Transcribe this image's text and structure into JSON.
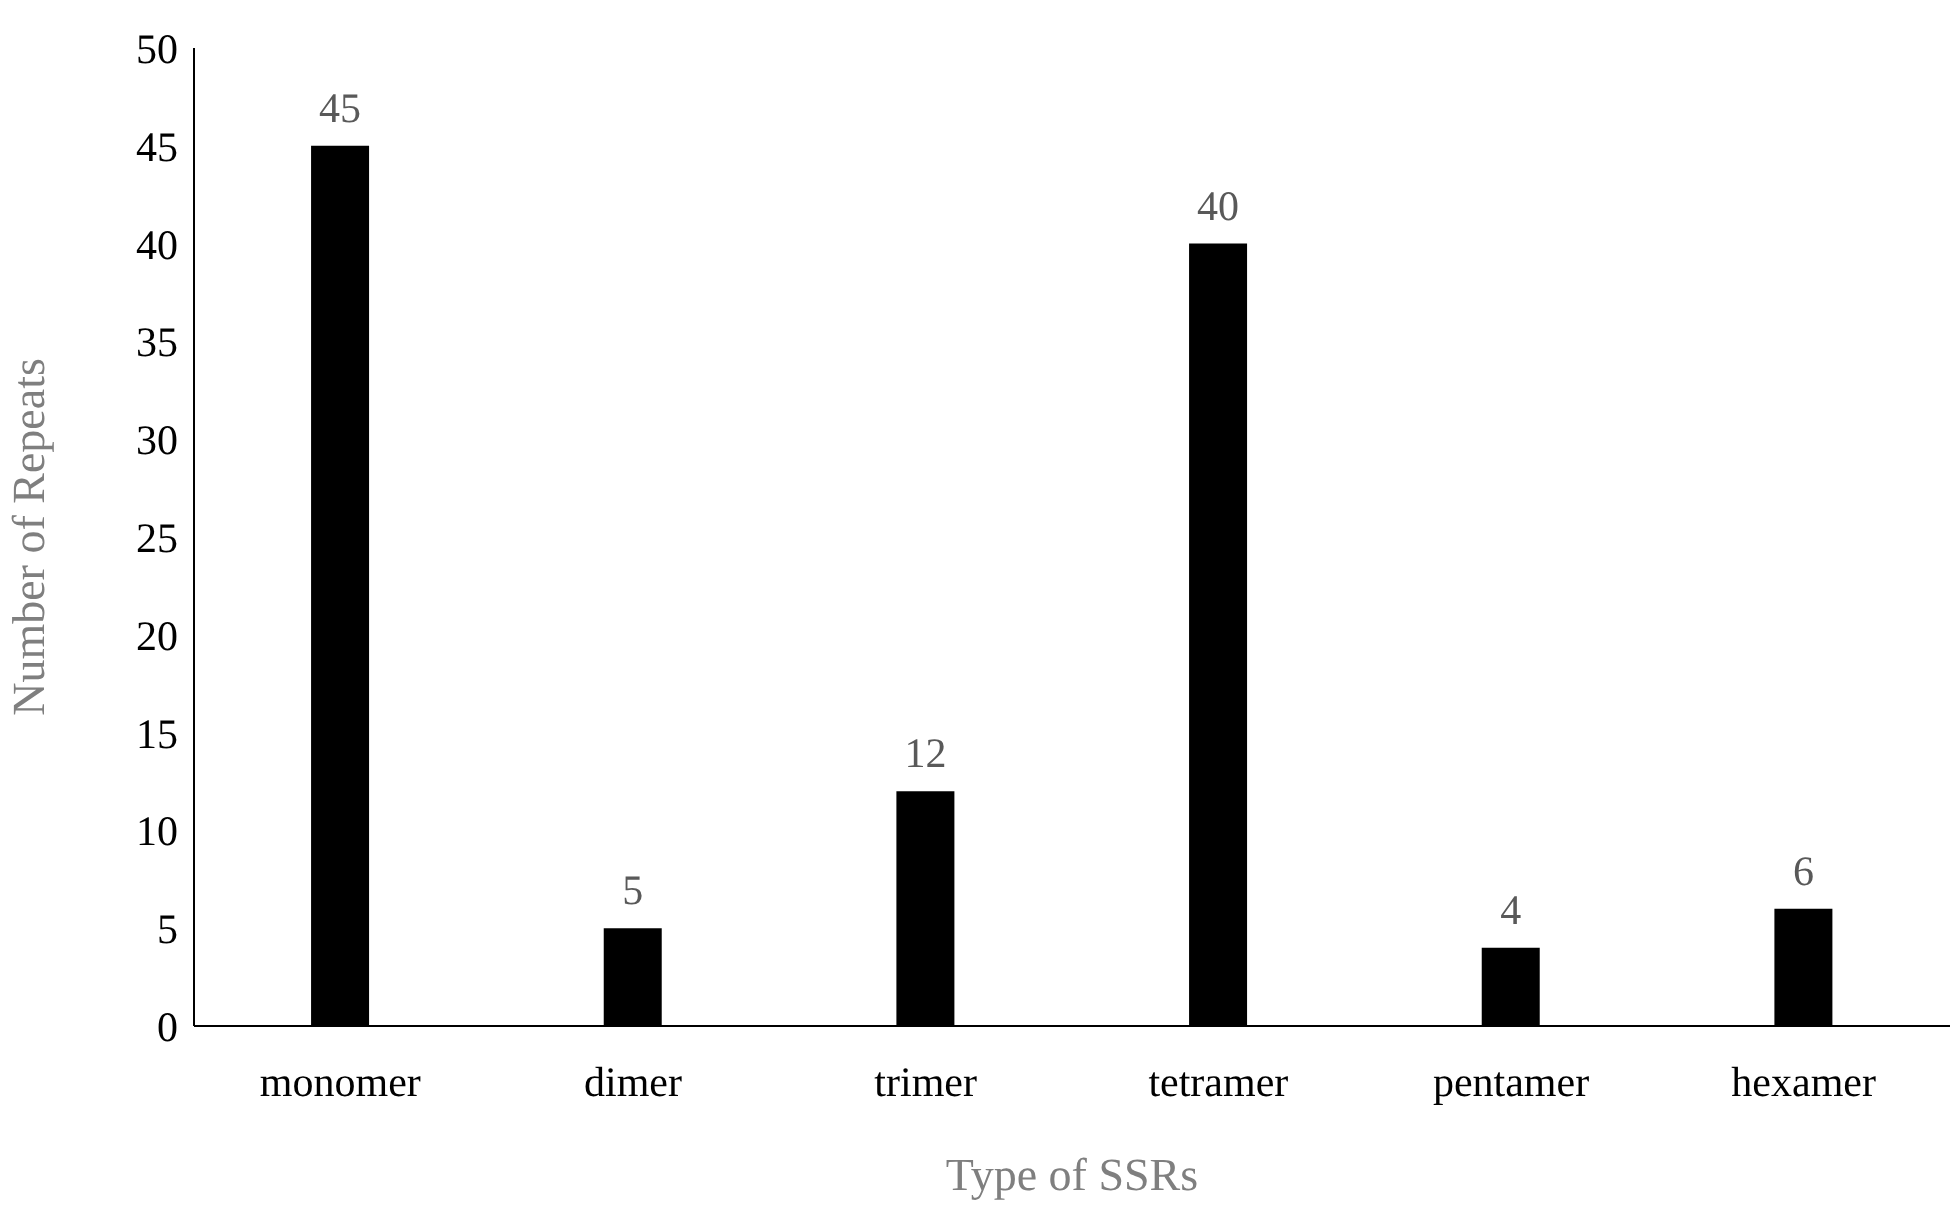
{
  "chart_data": {
    "type": "bar",
    "xlabel": "Type of SSRs",
    "ylabel": "Number of Repeats",
    "categories": [
      "monomer",
      "dimer",
      "trimer",
      "tetramer",
      "pentamer",
      "hexamer"
    ],
    "values": [
      45,
      5,
      12,
      40,
      4,
      6
    ],
    "color": "#000000",
    "ylim": [
      0,
      50
    ],
    "yticks": [
      0,
      5,
      10,
      15,
      20,
      25,
      30,
      35,
      40,
      45,
      50
    ],
    "grid": false,
    "data_labels": true
  }
}
